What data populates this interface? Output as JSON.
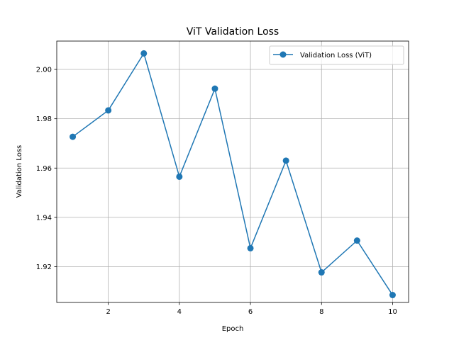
{
  "chart_data": {
    "type": "line",
    "title": "ViT Validation Loss",
    "xlabel": "Epoch",
    "ylabel": "Validation Loss",
    "xlim": [
      0.55,
      10.45
    ],
    "ylim": [
      1.9055,
      2.0115
    ],
    "xticks": [
      2,
      4,
      6,
      8,
      10
    ],
    "xtick_labels": [
      "2",
      "4",
      "6",
      "8",
      "10"
    ],
    "yticks": [
      1.92,
      1.94,
      1.96,
      1.98,
      2.0
    ],
    "ytick_labels": [
      "1.92",
      "1.94",
      "1.96",
      "1.98",
      "2.00"
    ],
    "grid": true,
    "legend": {
      "position": "top-right",
      "entries": [
        "Validation Loss (ViT)"
      ]
    },
    "series": [
      {
        "name": "Validation Loss (ViT)",
        "color": "#1f77b4",
        "marker": "circle",
        "x": [
          1,
          2,
          3,
          4,
          5,
          6,
          7,
          8,
          9,
          10
        ],
        "y": [
          1.9727,
          1.9834,
          2.0065,
          1.9565,
          1.9922,
          1.9275,
          1.963,
          1.9177,
          1.9306,
          1.9085
        ]
      }
    ]
  }
}
